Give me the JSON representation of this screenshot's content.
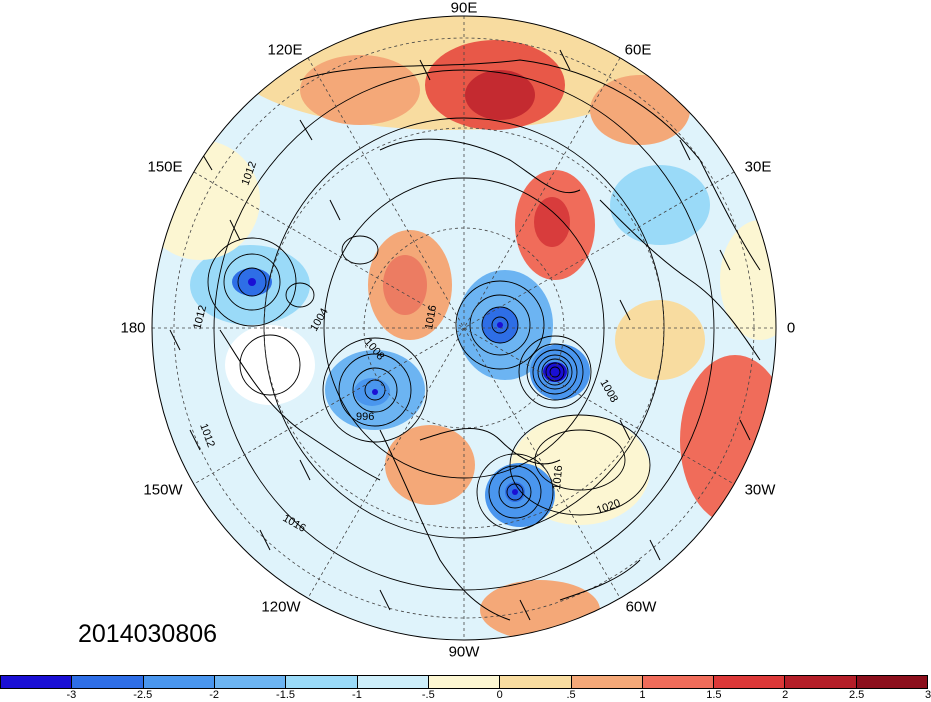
{
  "map": {
    "type": "polar-stereographic",
    "hemisphere": "north",
    "longitude_labels": [
      "90E",
      "60E",
      "30E",
      "0",
      "30W",
      "60W",
      "90W",
      "120W",
      "150W",
      "180",
      "150E",
      "120E"
    ],
    "contour_labels": [
      "1012",
      "1012",
      "1004",
      "1008",
      "1016",
      "996",
      "1012",
      "1016",
      "1008",
      "1016",
      "1020"
    ]
  },
  "date_stamp": "2014030806",
  "colorbar": {
    "colors": [
      "#1a0fd4",
      "#2e6ee6",
      "#4a96ee",
      "#6cb4f2",
      "#9adaf8",
      "#cdeefa",
      "#fcf6d2",
      "#f8dca0",
      "#f4a878",
      "#f06c5a",
      "#dc3838",
      "#b41e28",
      "#8c0f1c"
    ],
    "ticks": [
      "-3",
      "-2.5",
      "-2",
      "-1.5",
      "-1",
      "-.5",
      "0",
      ".5",
      "1",
      "1.5",
      "2",
      "2.5",
      "3"
    ]
  }
}
